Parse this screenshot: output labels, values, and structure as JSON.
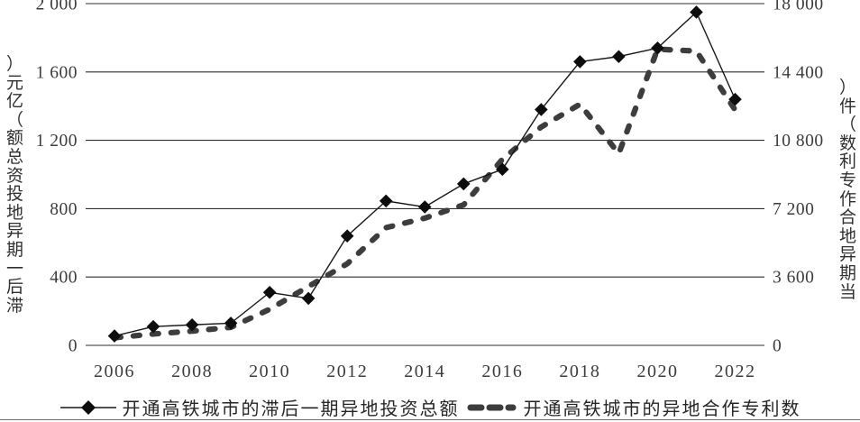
{
  "figure": {
    "colors": {
      "solid_line": "#161616",
      "diamond_marker": "#0d0d0d",
      "dashed_line": "#3d3d3d",
      "grid_line": "#2f2f2f",
      "tick_text": "#3c3c3c"
    }
  },
  "chart_data": {
    "type": "line",
    "x": [
      2006,
      2007,
      2008,
      2009,
      2010,
      2011,
      2012,
      2013,
      2014,
      2015,
      2016,
      2017,
      2018,
      2019,
      2020,
      2021,
      2022
    ],
    "x_tick_labels": [
      "2006",
      "2008",
      "2010",
      "2012",
      "2014",
      "2016",
      "2018",
      "2020",
      "2022"
    ],
    "left_axis": {
      "label": "滞后一期异地投资总额（亿元）",
      "range": [
        0,
        2000
      ],
      "ticks": [
        0,
        400,
        800,
        1200,
        1600,
        2000
      ],
      "tick_labels": [
        "0",
        "400",
        "800",
        "1 200",
        "1 600",
        "2 000"
      ]
    },
    "right_axis": {
      "label": "当期异地合作专利数（件）",
      "range": [
        0,
        18000
      ],
      "ticks": [
        0,
        3600,
        7200,
        10800,
        14400,
        18000
      ],
      "tick_labels": [
        "0",
        "3 600",
        "7 200",
        "10 800",
        "14 400",
        "18 000"
      ]
    },
    "series": [
      {
        "name": "开通高铁城市的滞后一期异地投资总额",
        "axis": "left",
        "style": "solid",
        "marker": "diamond",
        "values": [
          55,
          110,
          120,
          130,
          310,
          275,
          640,
          845,
          810,
          945,
          1030,
          1380,
          1660,
          1690,
          1740,
          1950,
          1440
        ]
      },
      {
        "name": "开通高铁城市的异地合作专利数",
        "axis": "right",
        "style": "dashed-thick",
        "marker": "none",
        "values": [
          400,
          600,
          750,
          950,
          1900,
          3100,
          4300,
          6200,
          6700,
          7400,
          9800,
          11500,
          12700,
          10100,
          15600,
          15500,
          12400
        ]
      }
    ],
    "grid": "horizontal",
    "legend_position": "bottom"
  }
}
